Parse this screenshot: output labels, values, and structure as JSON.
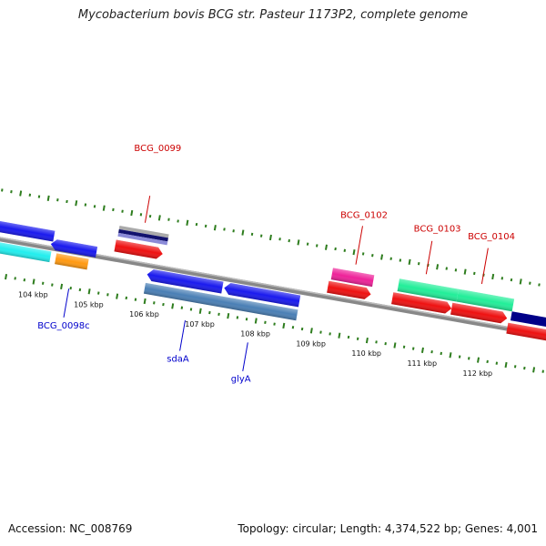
{
  "title": "Mycobacterium bovis BCG str. Pasteur 1173P2, complete genome",
  "footer": {
    "accession": "Accession: NC_008769",
    "stats": "Topology: circular; Length: 4,374,522 bp; Genes: 4,001"
  },
  "colors": {
    "backbone": "#888888",
    "tick": "#2e7d1e",
    "upper_label": "#cc0000",
    "lower_label": "#0000cc"
  },
  "ticks": [
    {
      "label": "104 kbp"
    },
    {
      "label": "105 kbp"
    },
    {
      "label": "106 kbp"
    },
    {
      "label": "107 kbp"
    },
    {
      "label": "108 kbp"
    },
    {
      "label": "109 kbp"
    },
    {
      "label": "110 kbp"
    },
    {
      "label": "111 kbp"
    },
    {
      "label": "112 kbp"
    }
  ],
  "upper_labels": [
    {
      "name": "BCG_0099"
    },
    {
      "name": "BCG_0102"
    },
    {
      "name": "BCG_0103"
    },
    {
      "name": "BCG_0104"
    }
  ],
  "lower_labels": [
    {
      "name": "BCG_0098c"
    },
    {
      "name": "sdaA"
    },
    {
      "name": "glyA"
    }
  ]
}
